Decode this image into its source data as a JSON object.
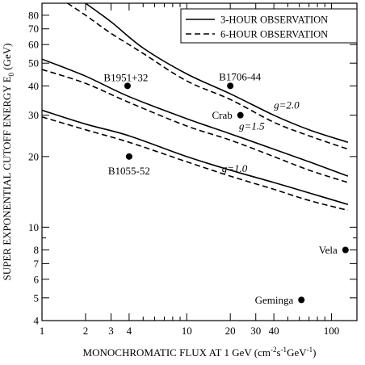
{
  "chart_data": {
    "type": "line",
    "xlabel_parts": {
      "main": "MONOCHROMATIC FLUX AT 1 GeV (cm",
      "sup1": "-2",
      "mid1": "s",
      "sup2": "-1",
      "mid2": "GeV",
      "sup3": "-1",
      "end": ")"
    },
    "ylabel_parts": {
      "main": "SUPER EXPONENTIAL CUTOFF ENERGY E",
      "sub": "0",
      "end": " (GeV)"
    },
    "x_scale": "log",
    "y_scale": "log",
    "xlim": [
      1,
      150
    ],
    "ylim": [
      4,
      90
    ],
    "x_ticks": [
      {
        "value": 1,
        "label": "1"
      },
      {
        "value": 2,
        "label": "2"
      },
      {
        "value": 3,
        "label": "3"
      },
      {
        "value": 4,
        "label": "4"
      },
      {
        "value": 10,
        "label": "10"
      },
      {
        "value": 20,
        "label": "20"
      },
      {
        "value": 30,
        "label": "30"
      },
      {
        "value": 40,
        "label": "40"
      },
      {
        "value": 100,
        "label": "100"
      }
    ],
    "x_minor_ticks": [
      5,
      6,
      7,
      8,
      9,
      50,
      60,
      70,
      80,
      90
    ],
    "y_ticks": [
      {
        "value": 4,
        "label": "4"
      },
      {
        "value": 5,
        "label": "5"
      },
      {
        "value": 6,
        "label": "6"
      },
      {
        "value": 7,
        "label": "7"
      },
      {
        "value": 8,
        "label": "8"
      },
      {
        "value": 10,
        "label": "10"
      },
      {
        "value": 20,
        "label": "20"
      },
      {
        "value": 30,
        "label": "30"
      },
      {
        "value": 40,
        "label": "40"
      },
      {
        "value": 50,
        "label": "50"
      },
      {
        "value": 60,
        "label": "60"
      },
      {
        "value": 70,
        "label": "70"
      },
      {
        "value": 80,
        "label": "80"
      }
    ],
    "y_minor_ticks": [
      9,
      90
    ],
    "legend": {
      "position": "top-right",
      "entries": [
        {
          "label": "3-HOUR OBSERVATION",
          "style": "solid"
        },
        {
          "label": "6-HOUR OBSERVATION",
          "style": "dashed"
        }
      ]
    },
    "series": [
      {
        "observation": "3-HOUR OBSERVATION",
        "g": "2.0",
        "style": "solid",
        "points": [
          [
            2.0,
            90
          ],
          [
            3,
            75
          ],
          [
            5,
            58
          ],
          [
            10,
            45
          ],
          [
            20,
            37
          ],
          [
            40,
            30
          ],
          [
            70,
            26
          ],
          [
            130,
            23
          ]
        ]
      },
      {
        "observation": "6-HOUR OBSERVATION",
        "g": "2.0",
        "style": "dashed",
        "points": [
          [
            1.5,
            90
          ],
          [
            2,
            80
          ],
          [
            3,
            67
          ],
          [
            5,
            55
          ],
          [
            10,
            42
          ],
          [
            20,
            35
          ],
          [
            40,
            28
          ],
          [
            70,
            24.5
          ],
          [
            130,
            21.5
          ]
        ]
      },
      {
        "observation": "3-HOUR OBSERVATION",
        "g": "1.5",
        "style": "solid",
        "points": [
          [
            1,
            52
          ],
          [
            2,
            44
          ],
          [
            4,
            36
          ],
          [
            10,
            29
          ],
          [
            20,
            25
          ],
          [
            40,
            21.5
          ],
          [
            70,
            19
          ],
          [
            130,
            16.5
          ]
        ]
      },
      {
        "observation": "6-HOUR OBSERVATION",
        "g": "1.5",
        "style": "dashed",
        "points": [
          [
            1,
            47
          ],
          [
            2,
            41
          ],
          [
            4,
            34
          ],
          [
            10,
            27
          ],
          [
            20,
            23.5
          ],
          [
            40,
            20
          ],
          [
            70,
            17.5
          ],
          [
            130,
            15.5
          ]
        ]
      },
      {
        "observation": "3-HOUR OBSERVATION",
        "g": "1.0",
        "style": "solid",
        "points": [
          [
            1,
            31.5
          ],
          [
            2,
            27.5
          ],
          [
            4,
            24.5
          ],
          [
            10,
            20
          ],
          [
            20,
            17.5
          ],
          [
            40,
            15.5
          ],
          [
            70,
            14
          ],
          [
            130,
            12.5
          ]
        ]
      },
      {
        "observation": "6-HOUR OBSERVATION",
        "g": "1.0",
        "style": "dashed",
        "points": [
          [
            1,
            29.5
          ],
          [
            2,
            26
          ],
          [
            4,
            23
          ],
          [
            10,
            19
          ],
          [
            20,
            16.5
          ],
          [
            40,
            14.5
          ],
          [
            70,
            13
          ],
          [
            130,
            11.8
          ]
        ]
      }
    ],
    "curve_labels": [
      {
        "text": "g=2.0",
        "x": 40,
        "y": 32
      },
      {
        "text": "g=1.5",
        "x": 23,
        "y": 26
      },
      {
        "text": "g=1.0",
        "x": 17.5,
        "y": 17.2
      }
    ],
    "pulsars": [
      {
        "name": "B1951+32",
        "x": 3.9,
        "y": 40,
        "label_pos": "above-left"
      },
      {
        "name": "B1706-44",
        "x": 20,
        "y": 40,
        "label_pos": "above"
      },
      {
        "name": "Crab",
        "x": 23.5,
        "y": 30,
        "label_pos": "left"
      },
      {
        "name": "B1055-52",
        "x": 4,
        "y": 20,
        "label_pos": "below"
      },
      {
        "name": "Vela",
        "x": 125,
        "y": 8,
        "label_pos": "left"
      },
      {
        "name": "Geminga",
        "x": 62,
        "y": 4.9,
        "label_pos": "left"
      }
    ]
  }
}
